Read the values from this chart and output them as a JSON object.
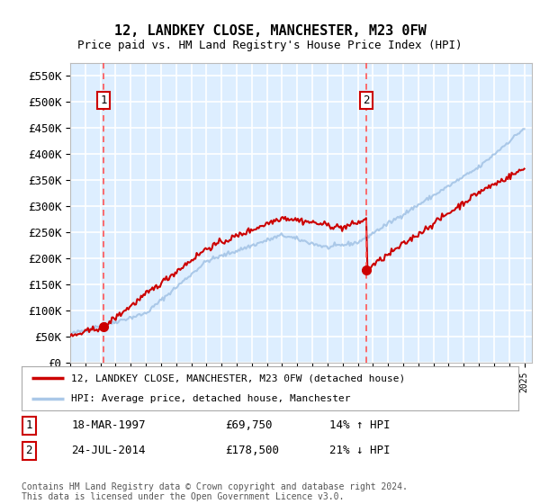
{
  "title": "12, LANDKEY CLOSE, MANCHESTER, M23 0FW",
  "subtitle": "Price paid vs. HM Land Registry's House Price Index (HPI)",
  "legend_line1": "12, LANDKEY CLOSE, MANCHESTER, M23 0FW (detached house)",
  "legend_line2": "HPI: Average price, detached house, Manchester",
  "sale1_label": "1",
  "sale1_date": "18-MAR-1997",
  "sale1_price": "£69,750",
  "sale1_hpi": "14% ↑ HPI",
  "sale1_year": 1997.21,
  "sale1_value": 69750,
  "sale2_label": "2",
  "sale2_date": "24-JUL-2014",
  "sale2_price": "£178,500",
  "sale2_hpi": "21% ↓ HPI",
  "sale2_year": 2014.56,
  "sale2_value": 178500,
  "hpi_line_color": "#aac8e8",
  "price_line_color": "#cc0000",
  "marker_color": "#cc0000",
  "dashed_line_color": "#ff5555",
  "plot_bg_color": "#ddeeff",
  "grid_color": "#ffffff",
  "ylim": [
    0,
    575000
  ],
  "xlim_start": 1995,
  "xlim_end": 2025.5,
  "yticks": [
    0,
    50000,
    100000,
    150000,
    200000,
    250000,
    300000,
    350000,
    400000,
    450000,
    500000,
    550000
  ],
  "ytick_labels": [
    "£0",
    "£50K",
    "£100K",
    "£150K",
    "£200K",
    "£250K",
    "£300K",
    "£350K",
    "£400K",
    "£450K",
    "£500K",
    "£550K"
  ],
  "copyright_text": "Contains HM Land Registry data © Crown copyright and database right 2024.\nThis data is licensed under the Open Government Licence v3.0.",
  "footnote_color": "#555555"
}
